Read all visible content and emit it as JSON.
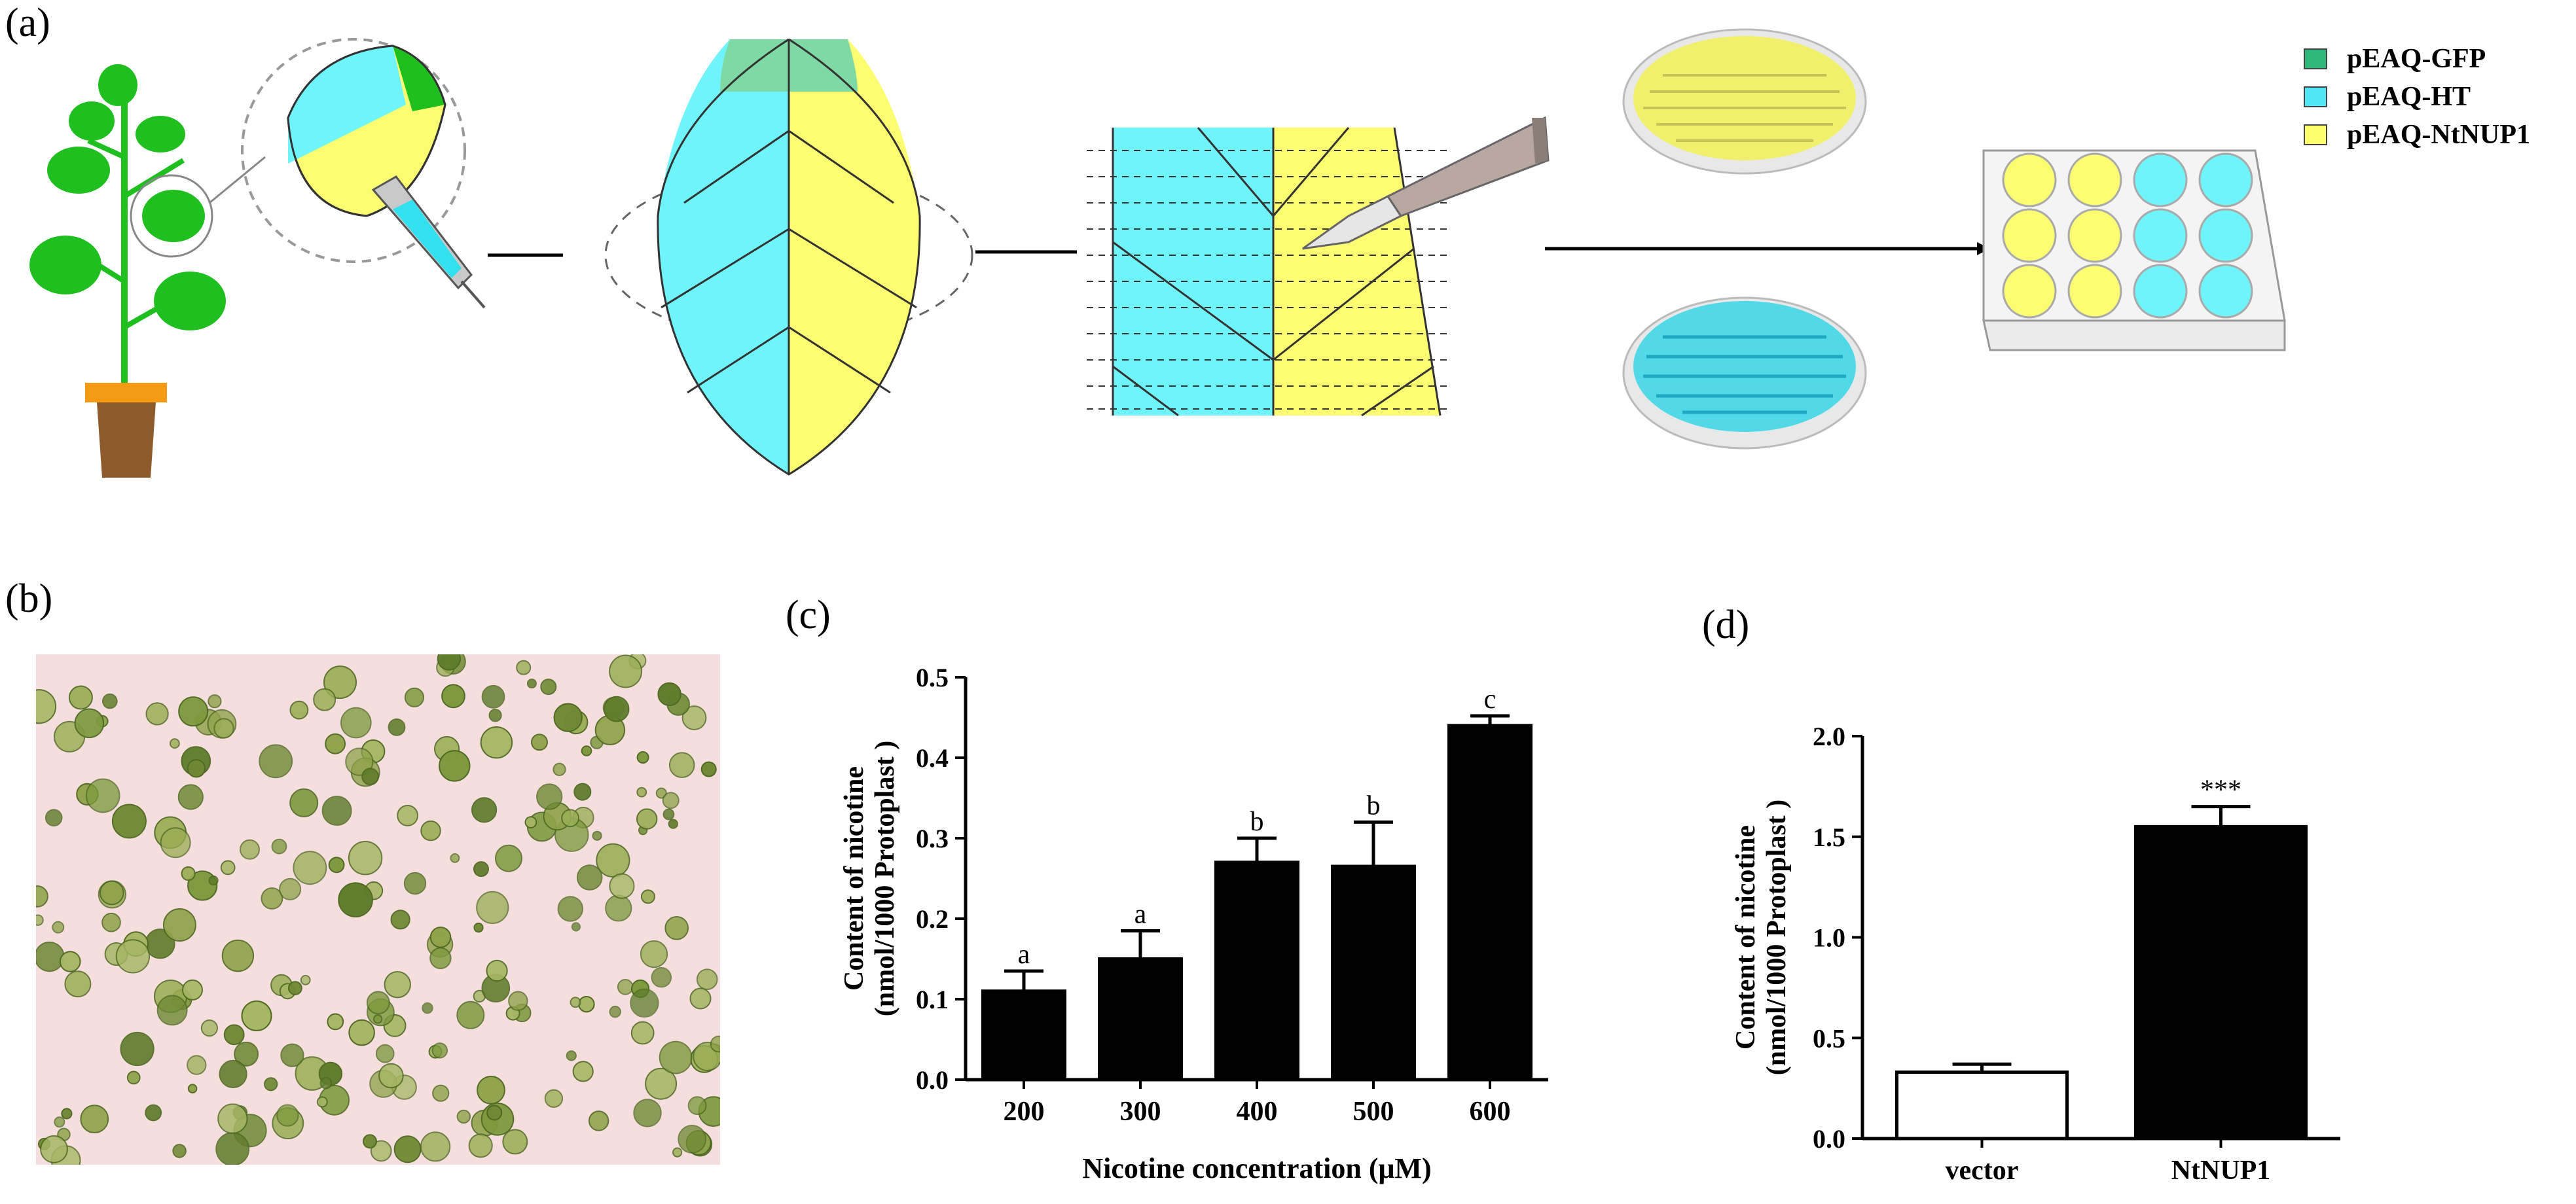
{
  "figure": {
    "panel_labels": {
      "a": "(a)",
      "b": "(b)",
      "c": "(c)",
      "d": "(d)"
    }
  },
  "legend": {
    "items": [
      {
        "label": "pEAQ-GFP",
        "color": "#2db87a"
      },
      {
        "label": "pEAQ-HT",
        "color": "#4fe6f5"
      },
      {
        "label": "pEAQ-NtNUP1",
        "color": "#ffff6e"
      }
    ]
  },
  "colors": {
    "leaf_green": "#1fbf1f",
    "cyan": "#6ff4fb",
    "yellow": "#fdfd72",
    "gfp_green": "#7fd9a4",
    "pot_orange": "#f59a14",
    "pot_brown": "#8c5a2b",
    "photo_bg": "#f6dede",
    "cell_green": "#8fa34a"
  },
  "chart_data": [
    {
      "id": "c",
      "type": "bar",
      "categories": [
        "200",
        "300",
        "400",
        "500",
        "600"
      ],
      "values": [
        0.11,
        0.15,
        0.27,
        0.265,
        0.44
      ],
      "errors": [
        0.025,
        0.035,
        0.03,
        0.055,
        0.012
      ],
      "significance": [
        "a",
        "a",
        "b",
        "b",
        "c"
      ],
      "bar_fill": [
        "#000000",
        "#000000",
        "#000000",
        "#000000",
        "#000000"
      ],
      "xlabel": "Nicotine concentration (μM)",
      "ylabel_line1": "Content of nicotine",
      "ylabel_line2": "(nmol/1000 Protoplast )",
      "ylim": [
        0,
        0.5
      ],
      "yticks": [
        0.0,
        0.1,
        0.2,
        0.3,
        0.4,
        0.5
      ],
      "ytick_labels": [
        "0.0",
        "0.1",
        "0.2",
        "0.3",
        "0.4",
        "0.5"
      ]
    },
    {
      "id": "d",
      "type": "bar",
      "categories": [
        "vector",
        "NtNUP1"
      ],
      "values": [
        0.33,
        1.55
      ],
      "errors": [
        0.04,
        0.1
      ],
      "significance": [
        "",
        "***"
      ],
      "bar_fill": [
        "#ffffff",
        "#000000"
      ],
      "xlabel": "",
      "ylabel_line1": "Content of nicotine",
      "ylabel_line2": "(nmol/1000 Protoplast )",
      "ylim": [
        0,
        2.0
      ],
      "yticks": [
        0.0,
        0.5,
        1.0,
        1.5,
        2.0
      ],
      "ytick_labels": [
        "0.0",
        "0.5",
        "1.0",
        "1.5",
        "2.0"
      ]
    }
  ]
}
